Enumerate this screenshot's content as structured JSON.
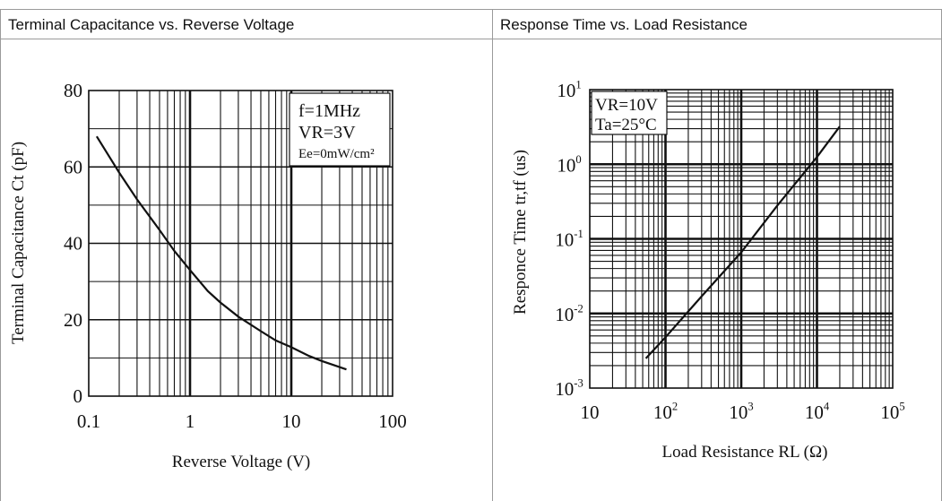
{
  "colors": {
    "line": "#111111",
    "grid": "#111111",
    "border": "#9a9a9a",
    "background": "#ffffff"
  },
  "panels": [
    {
      "title": "Terminal Capacitance vs. Reverse Voltage"
    },
    {
      "title": "Response Time vs. Load Resistance"
    }
  ],
  "chart_data": [
    {
      "type": "line",
      "title": "Terminal Capacitance vs. Reverse Voltage",
      "xlabel": "Reverse Voltage (V)",
      "ylabel": "Terminal Capacitance Ct (pF)",
      "xscale": "log",
      "xlim": [
        0.1,
        100
      ],
      "ylim": [
        0,
        80
      ],
      "xticks": [
        "0.1",
        "1",
        "10",
        "100"
      ],
      "yticks": [
        "0",
        "20",
        "40",
        "60",
        "80"
      ],
      "grid": true,
      "conditions": [
        "f=1MHz",
        "VR=3V",
        "Ee=0mW/cm²"
      ],
      "annotation_placement": "top-right",
      "series": [
        {
          "x": [
            0.12,
            0.2,
            0.3,
            0.5,
            0.7,
            1,
            1.5,
            2,
            3,
            5,
            7,
            10,
            15,
            20,
            30,
            35
          ],
          "y": [
            68,
            58.5,
            51.5,
            43.5,
            38,
            33,
            27.5,
            24.5,
            20.8,
            17,
            14.6,
            12.8,
            10.5,
            9.2,
            7.6,
            7
          ]
        }
      ]
    },
    {
      "type": "line",
      "title": "Response Time vs. Load Resistance",
      "xlabel": "Load Resistance RL (Ω)",
      "ylabel": "Responce Time tr,tf (us)",
      "xscale": "log",
      "yscale": "log",
      "xlim": [
        10,
        100000
      ],
      "ylim": [
        0.001,
        10
      ],
      "xticks": [
        "10",
        "10²",
        "10³",
        "10⁴",
        "10⁵"
      ],
      "yticks": [
        "10⁻³",
        "10⁻²",
        "10⁻¹",
        "10⁰",
        "10¹"
      ],
      "grid": true,
      "conditions": [
        "VR=10V",
        "Ta=25°C"
      ],
      "annotation_placement": "top-left",
      "series": [
        {
          "x": [
            55,
            100,
            300,
            1000,
            3000,
            10000,
            20000
          ],
          "y": [
            0.0025,
            0.0048,
            0.017,
            0.066,
            0.28,
            1.25,
            3.2
          ]
        }
      ]
    }
  ]
}
